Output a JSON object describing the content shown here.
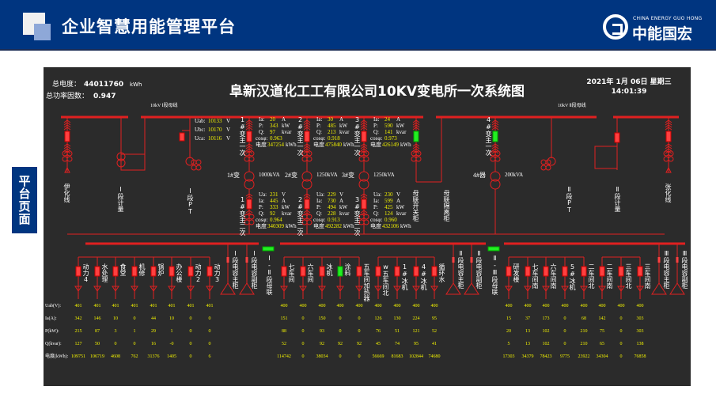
{
  "header": {
    "title": "企业智慧用能管理平台",
    "logo_en": "CHINA ENERGY GUO HONG",
    "logo_cn": "中能国宏"
  },
  "side_tab": "平台页面",
  "summary": {
    "energy_label": "总电度：",
    "energy_value": "44011760",
    "energy_unit": "kWh",
    "pf_label": "总功率因数：",
    "pf_value": "0.947"
  },
  "diagram": {
    "title": "阜新汉道化工工有限公司10KV变电所一次系统图",
    "date": "2021年 1月 06日 星期三",
    "time": "14:01:39",
    "bus1_label": "10kV Ⅰ段母线",
    "bus2_label": "10kV Ⅱ段母线",
    "vt": [
      {
        "label": "Uab:",
        "value": "10133",
        "unit": "V"
      },
      {
        "label": "Ubc:",
        "value": "10170",
        "unit": "V"
      },
      {
        "label": "Uca:",
        "value": "10116",
        "unit": "V"
      }
    ],
    "top_labels": [
      "伊化线",
      "Ⅰ段计量",
      "Ⅰ段PT",
      "母联开关柜",
      "母联隔离柜",
      "Ⅱ段PT",
      "Ⅱ段计量",
      "张化线"
    ],
    "transformers": [
      {
        "name": "1#变",
        "capacity": "1000kVA",
        "primary_label": "1#变主一次",
        "secondary_label": "1#变主二次",
        "primary": {
          "Ia": "20",
          "P": "343",
          "Q": "97",
          "cos": "0.963",
          "energy": "347254"
        },
        "secondary": {
          "Ua": "231",
          "Ia": "445",
          "P": "333",
          "Q": "92",
          "cos": "0.964",
          "energy": "340309"
        }
      },
      {
        "name": "2#变",
        "capacity": "1250kVA",
        "primary_label": "2#变主一次",
        "secondary_label": "2#变主二次",
        "primary": {
          "Ia": "30",
          "P": "485",
          "Q": "213",
          "cos": "0.918",
          "energy": "475840"
        },
        "secondary": {
          "Ua": "229",
          "Ia": "730",
          "P": "494",
          "Q": "228",
          "cos": "0.913",
          "energy": "492282"
        }
      },
      {
        "name": "3#变",
        "capacity": "1250kVA",
        "primary_label": "3#变主一次",
        "secondary_label": "3#变主二次",
        "primary": {
          "Ia": "24",
          "P": "590",
          "Q": "141",
          "cos": "0.973",
          "energy": "426149"
        },
        "secondary": {
          "Ua": "230",
          "Ia": "599",
          "P": "425",
          "Q": "124",
          "cos": "0.960",
          "energy": "432106"
        }
      },
      {
        "name": "4#器",
        "capacity": "200kVA",
        "primary_label": "4#变主一次"
      }
    ],
    "units": {
      "A": "A",
      "kW": "kW",
      "kvar": "kvar",
      "kWh": "kWh",
      "V": "V",
      "Ia": "Ia:",
      "P": "P:",
      "Q": "Q:",
      "Ua": "Ua:",
      "cos": "cosφ:",
      "energy": "电度"
    },
    "feeders": [
      "动力4",
      "水处理",
      "食堂",
      "机修",
      "锅炉",
      "办公楼",
      "动力2",
      "动力3",
      "Ⅰ段电容主柜",
      "Ⅰ段电容副柜",
      "Ⅰ-Ⅱ段母联",
      "七车间",
      "六车间",
      "冰机",
      "涂料",
      "五车间加热器",
      "w五车间北",
      "1#冰机",
      "4#冰机",
      "循环水",
      "Ⅱ段电容主柜",
      "Ⅱ段电容副柜",
      "Ⅱ-Ⅲ段母联",
      "研发楼",
      "七车间南",
      "六车间南",
      "5#冰机",
      "二车间北",
      "二车间南",
      "三车间北",
      "三车间南",
      "Ⅲ段电容主柜",
      "Ⅲ段电容副柜"
    ],
    "feeder_status_green": [
      "涂料"
    ],
    "table": {
      "row_labels": [
        "Uab(V):",
        "Ia(A):",
        "P(kW):",
        "Q(kvar):",
        "电度(kWh):"
      ],
      "columns": [
        [
          "401",
          "342",
          "215",
          "127",
          "109751"
        ],
        [
          "401",
          "146",
          "87",
          "50",
          "106719"
        ],
        [
          "401",
          "10",
          "3",
          "0",
          "4608"
        ],
        [
          "401",
          "0",
          "1",
          "0",
          "762"
        ],
        [
          "401",
          "44",
          "29",
          "16",
          "31376"
        ],
        [
          "401",
          "10",
          "1",
          "-0",
          "1405"
        ],
        [
          "401",
          "0",
          "0",
          "0",
          "0"
        ],
        [
          "401",
          "0",
          "0",
          "0",
          "6"
        ],
        [
          "400",
          "151",
          "88",
          "52",
          "114742"
        ],
        [
          "400",
          "0",
          "0",
          "0",
          "0"
        ],
        [
          "400",
          "150",
          "93",
          "92",
          "38034"
        ],
        [
          "400",
          "0",
          "0",
          "92",
          "0"
        ],
        [
          "400",
          "0",
          "0",
          "92",
          "0"
        ],
        [
          "400",
          "126",
          "76",
          "45",
          "56669"
        ],
        [
          "400",
          "130",
          "51",
          "74",
          "81683"
        ],
        [
          "400",
          "224",
          "121",
          "95",
          "102844"
        ],
        [
          "400",
          "95",
          "52",
          "41",
          "74680"
        ],
        [
          "400",
          "15",
          "20",
          "5",
          "17303"
        ],
        [
          "400",
          "37",
          "13",
          "13",
          "34379"
        ],
        [
          "400",
          "173",
          "102",
          "102",
          "78423"
        ],
        [
          "400",
          "0",
          "0",
          "0",
          "9775"
        ],
        [
          "400",
          "68",
          "210",
          "210",
          "23922"
        ],
        [
          "400",
          "142",
          "75",
          "65",
          "34304"
        ],
        [
          "400",
          "0",
          "0",
          "0",
          "0"
        ],
        [
          "400",
          "303",
          "303",
          "138",
          "76858"
        ]
      ]
    }
  },
  "colors": {
    "header": "#003580",
    "panel": "#2b2b2b",
    "line": "#e02020",
    "value": "#f2f200",
    "closed": "#ff4040",
    "open": "#22ee22"
  }
}
